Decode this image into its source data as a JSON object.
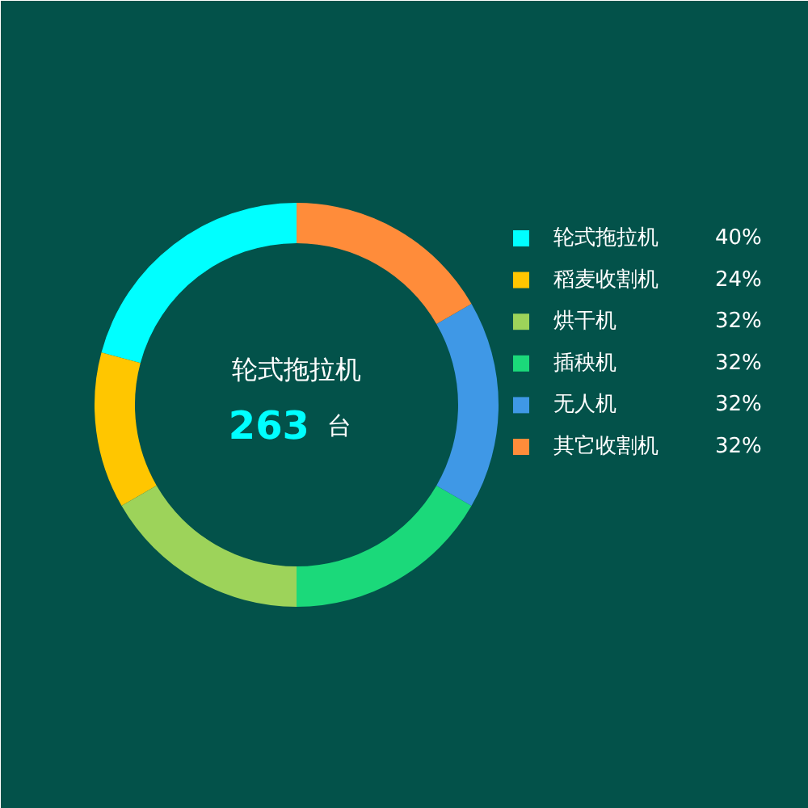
{
  "chart_data": {
    "type": "donut",
    "categories": [
      "轮式拖拉机",
      "稻麦收割机",
      "烘干机",
      "插秧机",
      "无人机",
      "其它收割机"
    ],
    "values": [
      40,
      24,
      32,
      32,
      32,
      32
    ],
    "value_labels": [
      "40%",
      "24%",
      "32%",
      "32%",
      "32%",
      "32%"
    ],
    "colors": [
      "#00ffff",
      "#ffc600",
      "#9dd35a",
      "#1bd97a",
      "#3f98e6",
      "#ff8c3a"
    ],
    "annotations": [
      "轮式拖拉机",
      "263",
      "台"
    ],
    "legend": "right"
  }
}
